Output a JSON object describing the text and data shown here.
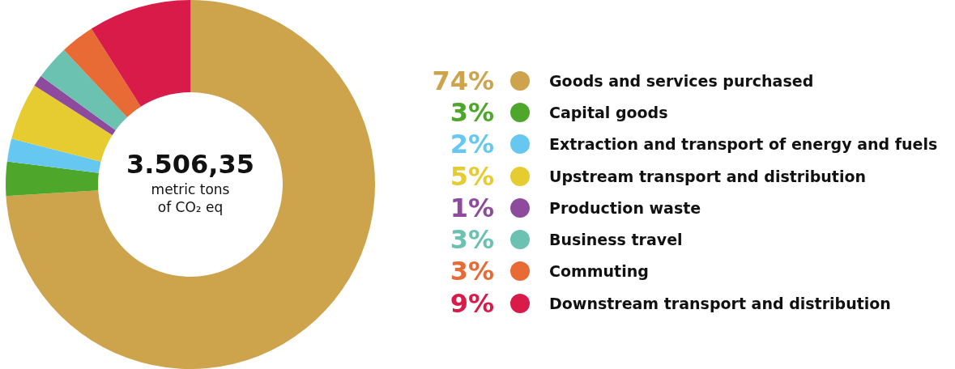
{
  "chart_data": {
    "type": "donut",
    "categories": [
      "Goods and services purchased",
      "Capital goods",
      "Extraction and transport of energy and fuels",
      "Upstream transport and distribution",
      "Production waste",
      "Business travel",
      "Commuting",
      "Downstream transport and distribution"
    ],
    "values": [
      74,
      3,
      2,
      5,
      1,
      3,
      3,
      9
    ],
    "colors": [
      "#cda44c",
      "#4ea62a",
      "#66c8f0",
      "#e6cc30",
      "#8e4b9e",
      "#6bc2b0",
      "#e86a35",
      "#d81b48"
    ],
    "annotations": [
      "3.506,35",
      "metric tons",
      "of CO₂ eq"
    ],
    "value_labels": [
      "74%",
      "3%",
      "2%",
      "5%",
      "1%",
      "3%",
      "3%",
      "9%"
    ],
    "legend": "right"
  }
}
